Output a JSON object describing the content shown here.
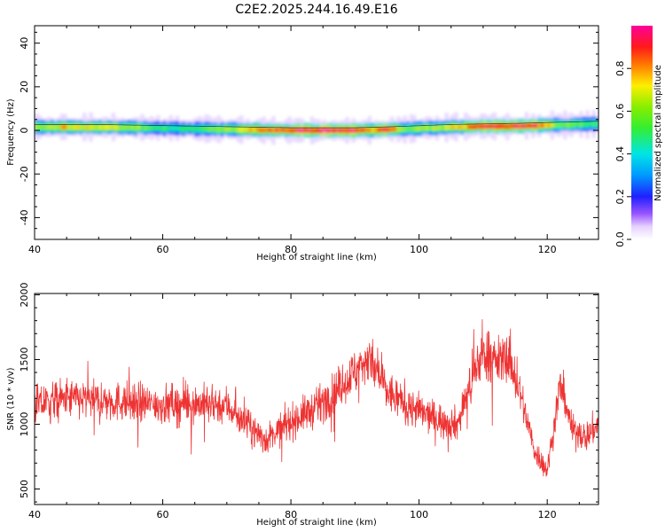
{
  "title": "C2E2.2025.244.16.49.E16",
  "colors": {
    "snr_line": "#ee3333",
    "frame": "#000000"
  },
  "chart_data": [
    {
      "type": "heatmap",
      "name": "spectrogram",
      "xlabel": "Height of straight line (km)",
      "ylabel": "Frequency (Hz)",
      "xlim": [
        40,
        128
      ],
      "ylim": [
        -50,
        48
      ],
      "xticks": [
        40,
        60,
        80,
        100,
        120
      ],
      "yticks": [
        -40,
        -20,
        0,
        20,
        40
      ],
      "colorbar": {
        "label": "Normalized spectral amplitude",
        "range": [
          0.0,
          1.0
        ],
        "ticks": [
          0.0,
          0.2,
          0.4,
          0.6,
          0.8
        ],
        "tick_labels": [
          "0.0",
          "0.2",
          "0.4",
          "0.6",
          "0.8"
        ],
        "colormap": "rainbow (white-violet-blue-cyan-green-yellow-red-magenta)"
      },
      "band_center_hz": [
        [
          40,
          1.5
        ],
        [
          50,
          1.5
        ],
        [
          60,
          1.0
        ],
        [
          70,
          0.5
        ],
        [
          80,
          0.0
        ],
        [
          90,
          0.0
        ],
        [
          96,
          0.5
        ],
        [
          105,
          1.5
        ],
        [
          115,
          2.0
        ],
        [
          128,
          3.0
        ]
      ],
      "peak_intensity": [
        [
          40,
          0.6
        ],
        [
          45,
          0.75
        ],
        [
          55,
          0.65
        ],
        [
          62,
          0.45
        ],
        [
          70,
          0.6
        ],
        [
          76,
          0.85
        ],
        [
          82,
          0.95
        ],
        [
          90,
          0.95
        ],
        [
          93,
          0.8
        ],
        [
          95,
          0.9
        ],
        [
          98,
          0.6
        ],
        [
          104,
          0.65
        ],
        [
          110,
          0.9
        ],
        [
          118,
          0.9
        ],
        [
          122,
          0.6
        ],
        [
          128,
          0.5
        ]
      ]
    },
    {
      "type": "line",
      "name": "snr",
      "xlabel": "Height of straight line (km)",
      "ylabel": "SNR (10 * v/v)",
      "xlim": [
        40,
        128
      ],
      "ylim": [
        380,
        2010
      ],
      "xticks": [
        40,
        60,
        80,
        100,
        120
      ],
      "yticks": [
        500,
        1000,
        1500,
        2000
      ],
      "series": [
        {
          "name": "SNR",
          "x": [
            40,
            45,
            50,
            55,
            60,
            65,
            70,
            73,
            76,
            80,
            84,
            88,
            92,
            95,
            98,
            102,
            106,
            108,
            110,
            112,
            114,
            116,
            118,
            120,
            122,
            124,
            126,
            128
          ],
          "y": [
            1150,
            1200,
            1180,
            1170,
            1150,
            1160,
            1150,
            1000,
            880,
            1020,
            1130,
            1300,
            1520,
            1250,
            1150,
            1050,
            1000,
            1300,
            1560,
            1480,
            1520,
            1200,
            800,
            640,
            1300,
            950,
            900,
            1000
          ]
        }
      ]
    }
  ]
}
